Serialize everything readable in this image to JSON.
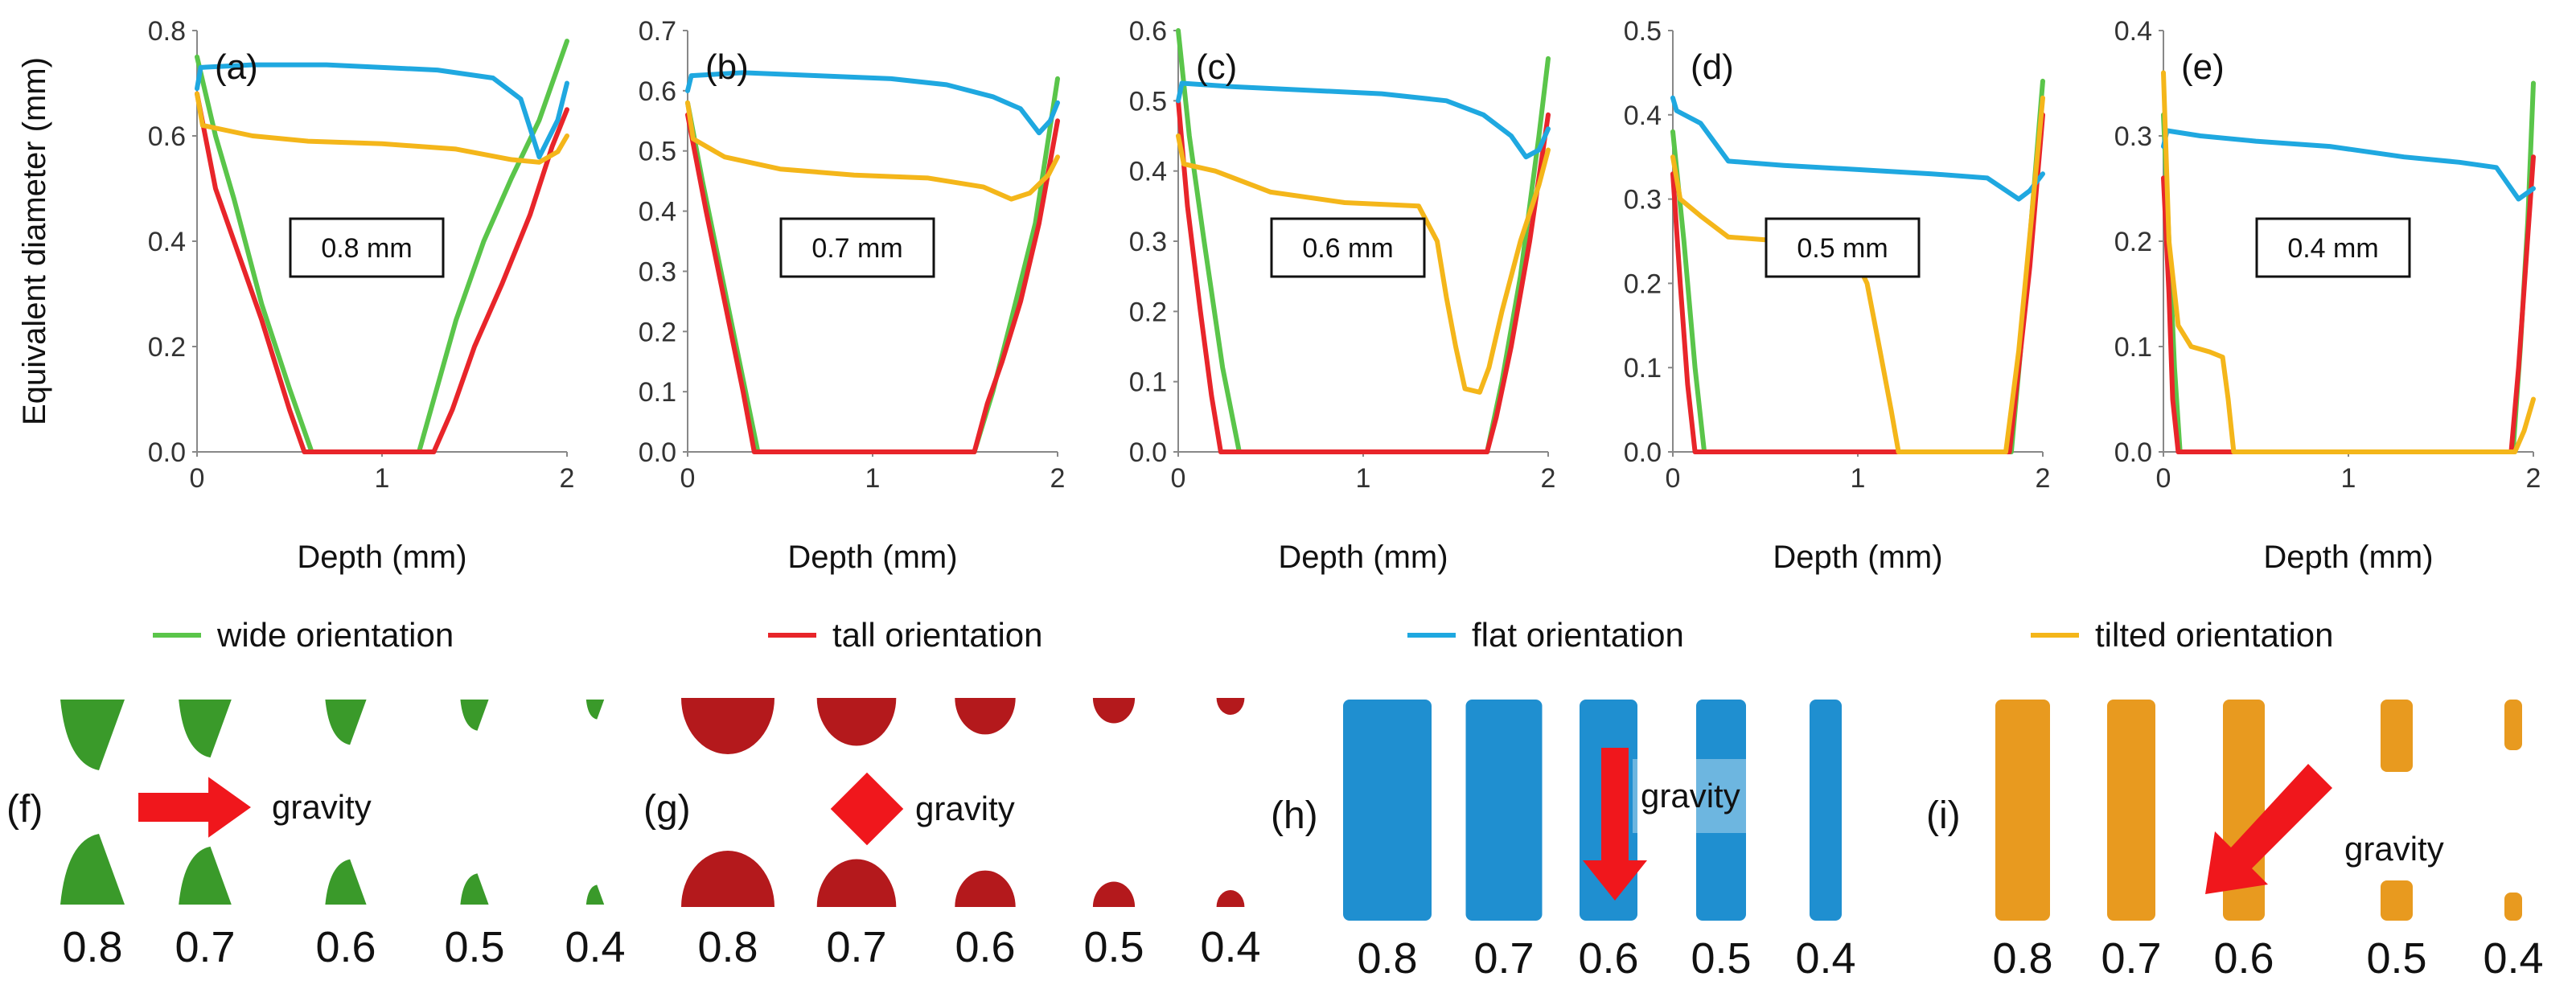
{
  "chart_data": [
    {
      "type": "line",
      "panel": "(a)",
      "box_label": "0.8 mm",
      "xlabel": "Depth (mm)",
      "ylabel": "Equivalent diameter (mm)",
      "xlim": [
        0,
        2
      ],
      "ylim": [
        0,
        0.8
      ],
      "xticks": [
        "0",
        "1",
        "2"
      ],
      "yticks": [
        "0.0",
        "0.2",
        "0.4",
        "0.6",
        "0.8"
      ],
      "series": [
        {
          "name": "wide orientation",
          "x": [
            0,
            0.1,
            0.2,
            0.35,
            0.5,
            0.62,
            1.2,
            1.28,
            1.4,
            1.55,
            1.7,
            1.85,
            2.0
          ],
          "y": [
            0.75,
            0.6,
            0.48,
            0.28,
            0.12,
            0,
            0,
            0.1,
            0.25,
            0.4,
            0.52,
            0.63,
            0.78
          ]
        },
        {
          "name": "tall orientation",
          "x": [
            0,
            0.1,
            0.2,
            0.35,
            0.5,
            0.58,
            1.28,
            1.38,
            1.5,
            1.65,
            1.8,
            1.92,
            2.0
          ],
          "y": [
            0.68,
            0.5,
            0.4,
            0.25,
            0.08,
            0,
            0,
            0.08,
            0.2,
            0.32,
            0.45,
            0.58,
            0.65
          ]
        },
        {
          "name": "flat orientation",
          "x": [
            0,
            0.02,
            0.3,
            0.7,
            1.0,
            1.3,
            1.6,
            1.75,
            1.85,
            1.95,
            2.0
          ],
          "y": [
            0.69,
            0.73,
            0.735,
            0.735,
            0.73,
            0.725,
            0.71,
            0.67,
            0.56,
            0.63,
            0.7
          ]
        },
        {
          "name": "tilted orientation",
          "x": [
            0,
            0.03,
            0.3,
            0.6,
            1.0,
            1.4,
            1.7,
            1.85,
            1.95,
            2.0
          ],
          "y": [
            0.68,
            0.62,
            0.6,
            0.59,
            0.585,
            0.575,
            0.555,
            0.55,
            0.57,
            0.6
          ]
        }
      ]
    },
    {
      "type": "line",
      "panel": "(b)",
      "box_label": "0.7 mm",
      "xlabel": "Depth (mm)",
      "xlim": [
        0,
        2
      ],
      "ylim": [
        0,
        0.7
      ],
      "xticks": [
        "0",
        "1",
        "2"
      ],
      "yticks": [
        "0.0",
        "0.1",
        "0.2",
        "0.3",
        "0.4",
        "0.5",
        "0.6",
        "0.7"
      ],
      "series": [
        {
          "name": "wide orientation",
          "x": [
            0,
            0.08,
            0.18,
            0.3,
            0.38,
            1.55,
            1.65,
            1.75,
            1.88,
            2.0
          ],
          "y": [
            0.58,
            0.45,
            0.3,
            0.12,
            0,
            0,
            0.1,
            0.22,
            0.38,
            0.62
          ]
        },
        {
          "name": "tall orientation",
          "x": [
            0,
            0.1,
            0.2,
            0.3,
            0.36,
            1.55,
            1.62,
            1.7,
            1.8,
            1.9,
            2.0
          ],
          "y": [
            0.56,
            0.4,
            0.25,
            0.1,
            0,
            0,
            0.08,
            0.15,
            0.25,
            0.38,
            0.55
          ]
        },
        {
          "name": "flat orientation",
          "x": [
            0,
            0.02,
            0.3,
            0.7,
            1.1,
            1.4,
            1.65,
            1.8,
            1.9,
            1.96,
            2.0
          ],
          "y": [
            0.6,
            0.625,
            0.63,
            0.625,
            0.62,
            0.61,
            0.59,
            0.57,
            0.53,
            0.55,
            0.58
          ]
        },
        {
          "name": "tilted orientation",
          "x": [
            0,
            0.03,
            0.2,
            0.5,
            0.9,
            1.3,
            1.6,
            1.75,
            1.85,
            1.95,
            2.0
          ],
          "y": [
            0.58,
            0.52,
            0.49,
            0.47,
            0.46,
            0.455,
            0.44,
            0.42,
            0.43,
            0.46,
            0.49
          ]
        }
      ]
    },
    {
      "type": "line",
      "panel": "(c)",
      "box_label": "0.6 mm",
      "xlabel": "Depth (mm)",
      "xlim": [
        0,
        2
      ],
      "ylim": [
        0,
        0.6
      ],
      "xticks": [
        "0",
        "1",
        "2"
      ],
      "yticks": [
        "0.0",
        "0.1",
        "0.2",
        "0.3",
        "0.4",
        "0.5",
        "0.6"
      ],
      "series": [
        {
          "name": "wide orientation",
          "x": [
            0,
            0.06,
            0.14,
            0.24,
            0.33,
            1.67,
            1.75,
            1.85,
            1.95,
            2.0
          ],
          "y": [
            0.6,
            0.45,
            0.3,
            0.12,
            0,
            0,
            0.1,
            0.25,
            0.45,
            0.56
          ]
        },
        {
          "name": "tall orientation",
          "x": [
            0,
            0.05,
            0.12,
            0.18,
            0.23,
            1.67,
            1.72,
            1.8,
            1.9,
            2.0
          ],
          "y": [
            0.5,
            0.35,
            0.2,
            0.08,
            0,
            0,
            0.05,
            0.15,
            0.3,
            0.48
          ]
        },
        {
          "name": "flat orientation",
          "x": [
            0,
            0.02,
            0.3,
            0.7,
            1.1,
            1.45,
            1.65,
            1.8,
            1.88,
            1.95,
            2.0
          ],
          "y": [
            0.5,
            0.525,
            0.52,
            0.515,
            0.51,
            0.5,
            0.48,
            0.45,
            0.42,
            0.43,
            0.46
          ]
        },
        {
          "name": "tilted orientation",
          "x": [
            0,
            0.03,
            0.2,
            0.5,
            0.9,
            1.3,
            1.4,
            1.45,
            1.5,
            1.55,
            1.63,
            1.68,
            1.75,
            1.85,
            1.95,
            2.0
          ],
          "y": [
            0.45,
            0.41,
            0.4,
            0.37,
            0.355,
            0.35,
            0.3,
            0.22,
            0.15,
            0.09,
            0.085,
            0.12,
            0.2,
            0.3,
            0.38,
            0.43
          ]
        }
      ]
    },
    {
      "type": "line",
      "panel": "(d)",
      "box_label": "0.5 mm",
      "xlabel": "Depth (mm)",
      "xlim": [
        0,
        2
      ],
      "ylim": [
        0,
        0.5
      ],
      "xticks": [
        "0",
        "1",
        "2"
      ],
      "yticks": [
        "0.0",
        "0.1",
        "0.2",
        "0.3",
        "0.4",
        "0.5"
      ],
      "series": [
        {
          "name": "wide orientation",
          "x": [
            0,
            0.06,
            0.12,
            0.17,
            1.83,
            1.88,
            1.94,
            2.0
          ],
          "y": [
            0.38,
            0.25,
            0.1,
            0,
            0,
            0.12,
            0.28,
            0.44
          ]
        },
        {
          "name": "tall orientation",
          "x": [
            0,
            0.04,
            0.08,
            0.12,
            1.82,
            1.87,
            1.93,
            2.0
          ],
          "y": [
            0.33,
            0.2,
            0.08,
            0,
            0,
            0.1,
            0.22,
            0.4
          ]
        },
        {
          "name": "flat orientation",
          "x": [
            0,
            0.02,
            0.15,
            0.3,
            0.6,
            1.0,
            1.4,
            1.7,
            1.87,
            1.93,
            2.0
          ],
          "y": [
            0.42,
            0.405,
            0.39,
            0.345,
            0.34,
            0.335,
            0.33,
            0.325,
            0.3,
            0.31,
            0.33
          ]
        },
        {
          "name": "tilted orientation",
          "x": [
            0,
            0.04,
            0.15,
            0.3,
            0.6,
            0.95,
            1.05,
            1.12,
            1.18,
            1.22,
            1.8,
            1.87,
            1.94,
            2.0
          ],
          "y": [
            0.35,
            0.3,
            0.28,
            0.255,
            0.25,
            0.245,
            0.2,
            0.12,
            0.05,
            0,
            0,
            0.12,
            0.28,
            0.42
          ]
        }
      ]
    },
    {
      "type": "line",
      "panel": "(e)",
      "box_label": "0.4 mm",
      "xlabel": "Depth (mm)",
      "xlim": [
        0,
        2
      ],
      "ylim": [
        0,
        0.4
      ],
      "xticks": [
        "0",
        "1",
        "2"
      ],
      "yticks": [
        "0.0",
        "0.1",
        "0.2",
        "0.3",
        "0.4"
      ],
      "series": [
        {
          "name": "wide orientation",
          "x": [
            0,
            0.03,
            0.06,
            0.09,
            1.89,
            1.93,
            1.97,
            2.0
          ],
          "y": [
            0.32,
            0.2,
            0.08,
            0,
            0,
            0.1,
            0.22,
            0.35
          ]
        },
        {
          "name": "tall orientation",
          "x": [
            0,
            0.03,
            0.05,
            0.08,
            1.88,
            1.92,
            1.96,
            2.0
          ],
          "y": [
            0.26,
            0.15,
            0.05,
            0,
            0,
            0.08,
            0.18,
            0.28
          ]
        },
        {
          "name": "flat orientation",
          "x": [
            0,
            0.02,
            0.2,
            0.5,
            0.9,
            1.3,
            1.6,
            1.8,
            1.92,
            2.0
          ],
          "y": [
            0.29,
            0.305,
            0.3,
            0.295,
            0.29,
            0.28,
            0.275,
            0.27,
            0.24,
            0.25
          ]
        },
        {
          "name": "tilted orientation",
          "x": [
            0,
            0.03,
            0.08,
            0.15,
            0.25,
            0.32,
            0.35,
            0.38,
            1.9,
            1.95,
            2.0
          ],
          "y": [
            0.36,
            0.2,
            0.12,
            0.1,
            0.095,
            0.09,
            0.05,
            0,
            0,
            0.02,
            0.05
          ]
        }
      ]
    }
  ],
  "legend": [
    {
      "name": "wide orientation",
      "color": "#5ac54a"
    },
    {
      "name": "tall orientation",
      "color": "#e8252a"
    },
    {
      "name": "flat orientation",
      "color": "#1fa8e0"
    },
    {
      "name": "tilted orientation",
      "color": "#f4b61a"
    }
  ],
  "bottom_panels": [
    {
      "label": "(f)",
      "gravity_label": "gravity",
      "color": "#3a9a2a",
      "sizes": [
        "0.8",
        "0.7",
        "0.6",
        "0.5",
        "0.4"
      ]
    },
    {
      "label": "(g)",
      "gravity_label": "gravity",
      "color": "#b4191c",
      "sizes": [
        "0.8",
        "0.7",
        "0.6",
        "0.5",
        "0.4"
      ]
    },
    {
      "label": "(h)",
      "gravity_label": "gravity",
      "color": "#1f8fd0",
      "sizes": [
        "0.8",
        "0.7",
        "0.6",
        "0.5",
        "0.4"
      ]
    },
    {
      "label": "(i)",
      "gravity_label": "gravity",
      "color": "#e89a1f",
      "sizes": [
        "0.8",
        "0.7",
        "0.6",
        "0.5",
        "0.4"
      ]
    }
  ]
}
